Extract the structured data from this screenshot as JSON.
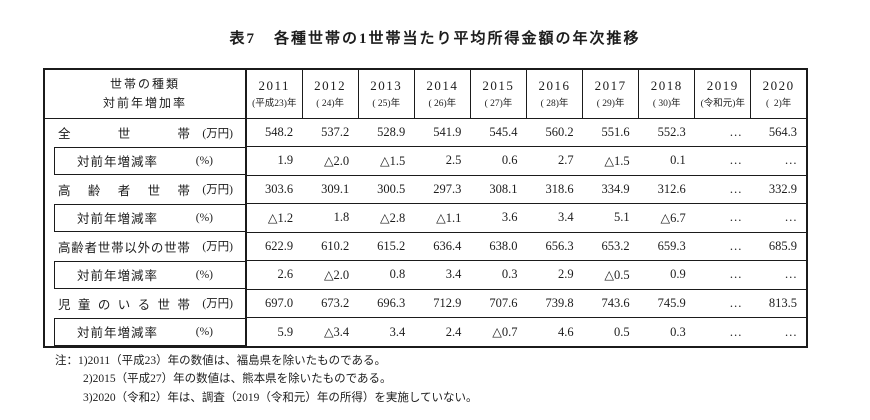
{
  "title": {
    "label": "表7",
    "text": "各種世帯の1世帯当たり平均所得金額の年次推移"
  },
  "table": {
    "header": {
      "line1": "世帯の種類",
      "line2": "対前年増加率"
    },
    "years": [
      {
        "year": "2011",
        "era": "(平成23)年"
      },
      {
        "year": "2012",
        "era": "( 24)年"
      },
      {
        "year": "2013",
        "era": "( 25)年"
      },
      {
        "year": "2014",
        "era": "( 26)年"
      },
      {
        "year": "2015",
        "era": "( 27)年"
      },
      {
        "year": "2016",
        "era": "( 28)年"
      },
      {
        "year": "2017",
        "era": "( 29)年"
      },
      {
        "year": "2018",
        "era": "( 30)年"
      },
      {
        "year": "2019",
        "era": "(令和元)年"
      },
      {
        "year": "2020",
        "era": "(  2)年"
      }
    ],
    "groups": [
      {
        "name": "全世帯",
        "unit": "(万円)",
        "sub_label": "対前年増減率",
        "sub_unit": "(%)",
        "incomes": [
          "548.2",
          "537.2",
          "528.9",
          "541.9",
          "545.4",
          "560.2",
          "551.6",
          "552.3",
          "…",
          "564.3"
        ],
        "rates": [
          "1.9",
          "△2.0",
          "△1.5",
          "2.5",
          "0.6",
          "2.7",
          "△1.5",
          "0.1",
          "…",
          "…"
        ]
      },
      {
        "name": "高齢者世帯",
        "unit": "(万円)",
        "sub_label": "対前年増減率",
        "sub_unit": "(%)",
        "incomes": [
          "303.6",
          "309.1",
          "300.5",
          "297.3",
          "308.1",
          "318.6",
          "334.9",
          "312.6",
          "…",
          "332.9"
        ],
        "rates": [
          "△1.2",
          "1.8",
          "△2.8",
          "△1.1",
          "3.6",
          "3.4",
          "5.1",
          "△6.7",
          "…",
          "…"
        ]
      },
      {
        "name": "高齢者世帯以外の世帯",
        "unit": "(万円)",
        "sub_label": "対前年増減率",
        "sub_unit": "(%)",
        "incomes": [
          "622.9",
          "610.2",
          "615.2",
          "636.4",
          "638.0",
          "656.3",
          "653.2",
          "659.3",
          "…",
          "685.9"
        ],
        "rates": [
          "2.6",
          "△2.0",
          "0.8",
          "3.4",
          "0.3",
          "2.9",
          "△0.5",
          "0.9",
          "…",
          "…"
        ]
      },
      {
        "name": "児童のいる世帯",
        "unit": "(万円)",
        "sub_label": "対前年増減率",
        "sub_unit": "(%)",
        "incomes": [
          "697.0",
          "673.2",
          "696.3",
          "712.9",
          "707.6",
          "739.8",
          "743.6",
          "745.9",
          "…",
          "813.5"
        ],
        "rates": [
          "5.9",
          "△3.4",
          "3.4",
          "2.4",
          "△0.7",
          "4.6",
          "0.5",
          "0.3",
          "…",
          "…"
        ]
      }
    ]
  },
  "notes": {
    "prefix": "注：",
    "items": [
      "1)2011（平成23）年の数値は、福島県を除いたものである。",
      "2)2015（平成27）年の数値は、熊本県を除いたものである。",
      "3)2020（令和2）年は、調査（2019（令和元）年の所得）を実施していない。"
    ]
  }
}
